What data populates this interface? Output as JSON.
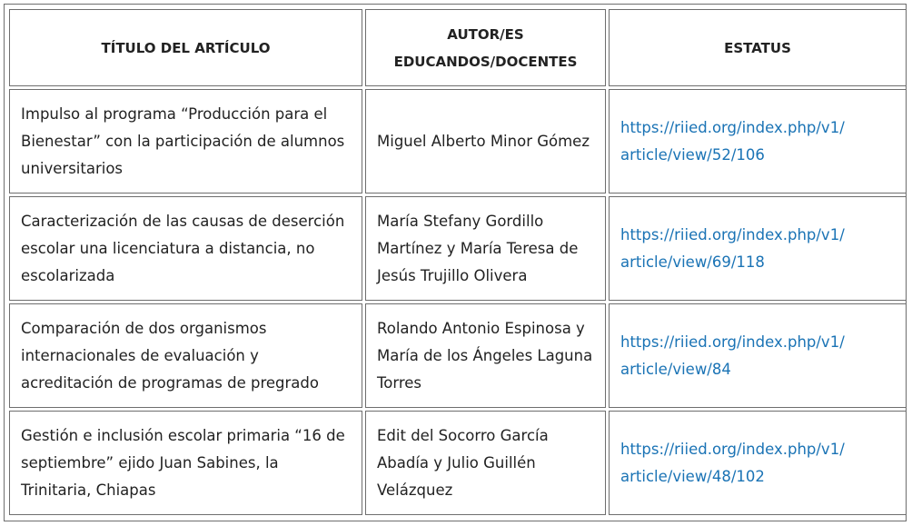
{
  "table": {
    "headers": [
      "TÍTULO DEL ARTÍCULO",
      "AUTOR/ES EDUCANDOS/DOCENTES",
      "ESTATUS"
    ],
    "header_lines": {
      "autor_line1": "AUTOR/ES",
      "autor_line2": "EDUCANDOS/DOCENTES"
    },
    "rows": [
      {
        "title": "Impulso al programa “Producción para el Bienestar” con la participación de alumnos universitarios",
        "authors": "Miguel Alberto Minor Gómez",
        "link_line1": "https://riied.org/index.php/v1/",
        "link_line2": "article/view/52/106"
      },
      {
        "title": "Caracterización de las causas de deserción escolar una licenciatura a distancia, no escolarizada",
        "authors": "María Stefany Gordillo Martínez y María Teresa de Jesús Trujillo Olivera",
        "link_line1": "https://riied.org/index.php/v1/",
        "link_line2": "article/view/69/118"
      },
      {
        "title": "Comparación de dos organismos internacionales de evaluación y acreditación de programas de pregrado",
        "authors": "Rolando Antonio Espinosa y María de los Ángeles Laguna Torres",
        "link_line1": "https://riied.org/index.php/v1/",
        "link_line2": "article/view/84"
      },
      {
        "title": "Gestión e inclusión escolar primaria “16 de septiembre” ejido Juan Sabines, la Trinitaria, Chiapas",
        "authors": "Edit del Socorro García Abadía y Julio Guillén Velázquez",
        "link_line1": "https://riied.org/index.php/v1/",
        "link_line2": "article/view/48/102"
      }
    ]
  },
  "colors": {
    "link": "#1a73b5",
    "text": "#222222",
    "border": "#6e6e6e"
  }
}
